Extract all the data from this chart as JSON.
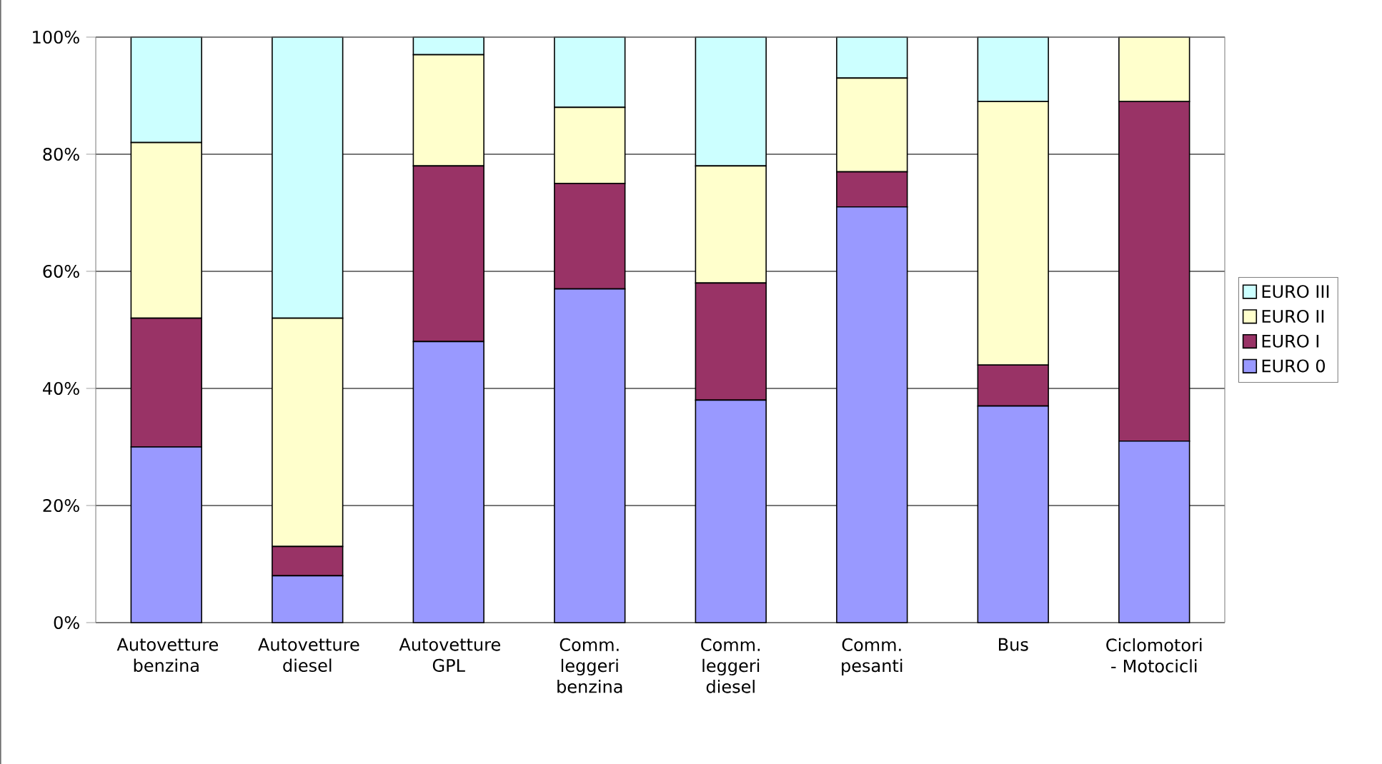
{
  "chart_data": {
    "type": "bar",
    "stacked": true,
    "categories": [
      "Autovetture benzina",
      "Autovetture diesel",
      "Autovetture GPL",
      "Comm. leggeri benzina",
      "Comm. leggeri diesel",
      "Comm. pesanti",
      "Bus",
      "Ciclomotori - Motocicli"
    ],
    "series": [
      {
        "name": "EURO 0",
        "color": "#9999ff",
        "values": [
          30,
          8,
          48,
          57,
          38,
          71,
          37,
          31
        ]
      },
      {
        "name": "EURO I",
        "color": "#993366",
        "values": [
          22,
          5,
          30,
          18,
          20,
          6,
          7,
          58
        ]
      },
      {
        "name": "EURO II",
        "color": "#ffffcc",
        "values": [
          30,
          39,
          19,
          13,
          20,
          16,
          45,
          11
        ]
      },
      {
        "name": "EURO III",
        "color": "#ccffff",
        "values": [
          18,
          48,
          3,
          12,
          22,
          7,
          11,
          0
        ]
      }
    ],
    "ylim": [
      0,
      100
    ],
    "yticks": [
      {
        "value": 0,
        "label": "0%"
      },
      {
        "value": 20,
        "label": "20%"
      },
      {
        "value": 40,
        "label": "40%"
      },
      {
        "value": 60,
        "label": "60%"
      },
      {
        "value": 80,
        "label": "80%"
      },
      {
        "value": 100,
        "label": "100%"
      }
    ],
    "grid": "y",
    "legend": "right"
  }
}
